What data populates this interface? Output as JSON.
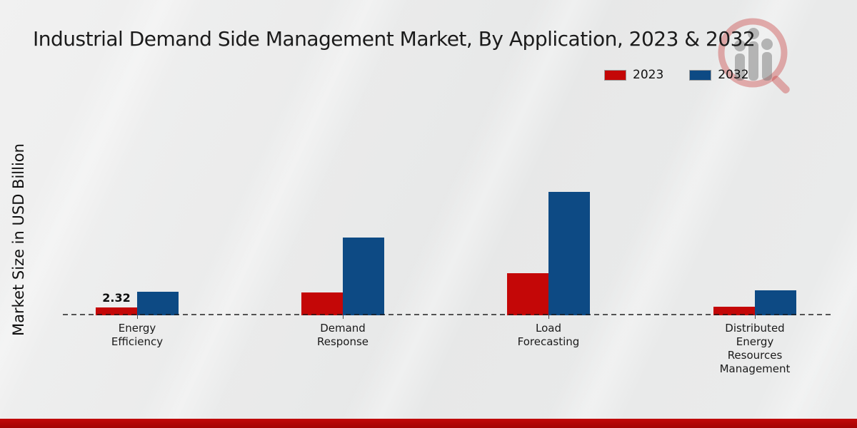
{
  "title": "Industrial Demand Side Management Market, By Application, 2023 & 2032",
  "y_axis_label": "Market Size in USD Billion",
  "legend": {
    "position": "top-right",
    "items": [
      {
        "label": "2023",
        "color": "#c40707"
      },
      {
        "label": "2032",
        "color": "#0d4a84"
      }
    ]
  },
  "chart_data": {
    "type": "bar",
    "title": "Industrial Demand Side Management Market, By Application, 2023 & 2032",
    "xlabel": "",
    "ylabel": "Market Size in USD Billion",
    "unit": "USD Billion",
    "categories": [
      "Energy Efficiency",
      "Demand Response",
      "Load Forecasting",
      "Distributed Energy Resources Management"
    ],
    "category_label_lines": [
      [
        "Energy",
        "Efficiency"
      ],
      [
        "Demand",
        "Response"
      ],
      [
        "Load",
        "Forecasting"
      ],
      [
        "Distributed",
        "Energy",
        "Resources",
        "Management"
      ]
    ],
    "series": [
      {
        "name": "2023",
        "color": "#c40707",
        "values": [
          2.32,
          6.75,
          12.45,
          2.55
        ],
        "data_labels": [
          "2.32",
          "",
          "",
          ""
        ]
      },
      {
        "name": "2032",
        "color": "#0d4a84",
        "values": [
          6.95,
          23.0,
          36.5,
          7.4
        ],
        "data_labels": [
          "",
          "",
          "",
          ""
        ]
      }
    ],
    "ylim": [
      0,
      40
    ],
    "grid": false,
    "legend_position": "top-right",
    "baseline_style": "dashed",
    "note": "Only the 2023 Energy Efficiency bar carries a printed data label (2.32); other values are estimated from bar heights."
  },
  "watermark": {
    "name": "magnifier-bar-chart-logo"
  },
  "footer": {
    "band_color": "#b30808"
  }
}
